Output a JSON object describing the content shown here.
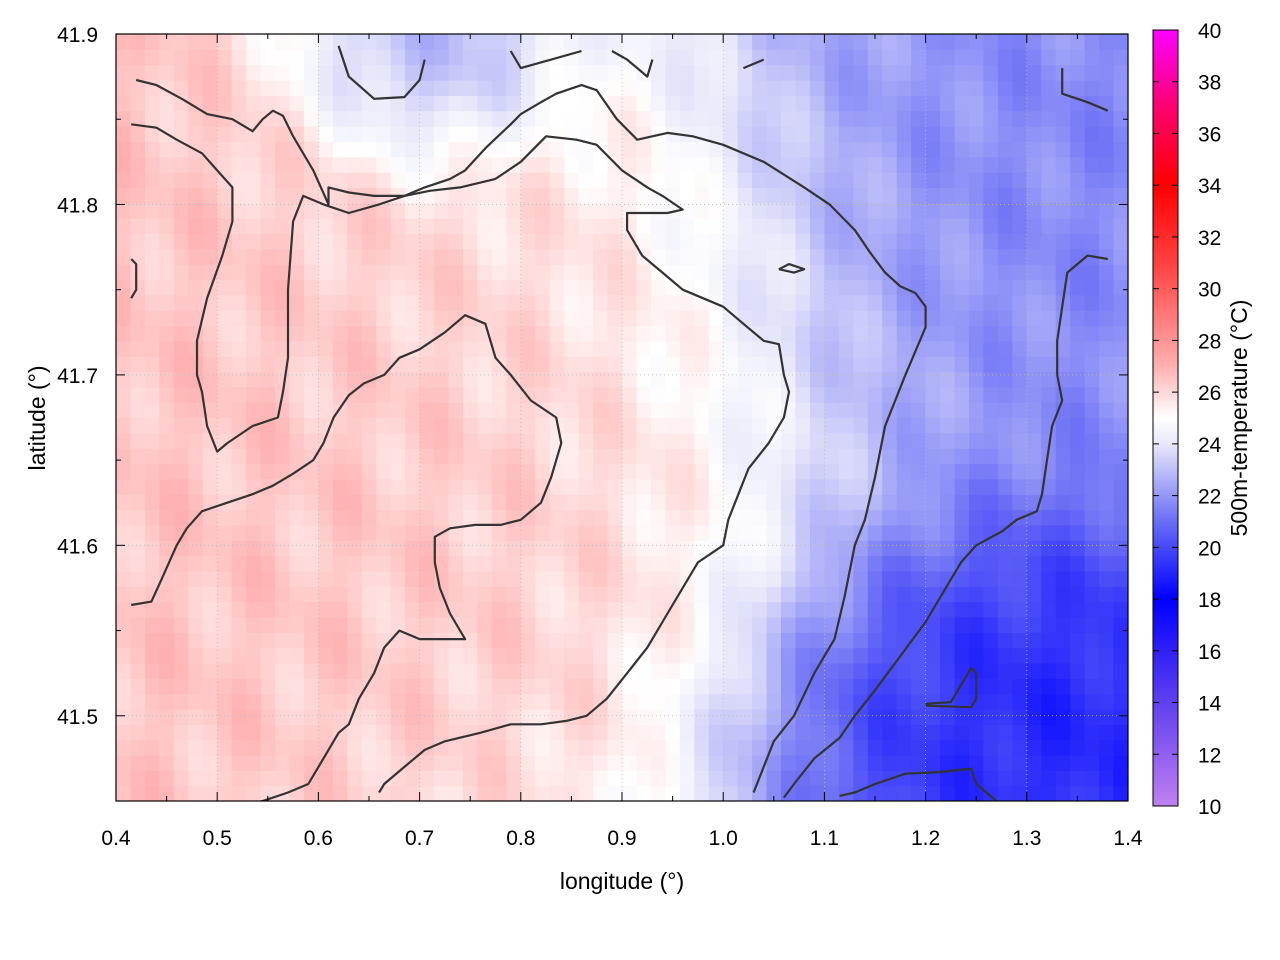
{
  "chart_data": {
    "type": "heatmap",
    "title": "",
    "xlabel": "longitude (°)",
    "ylabel": "latitude (°)",
    "colorbar_label": "500m-temperature (°C)",
    "xlim": [
      0.4,
      1.4
    ],
    "ylim": [
      41.45,
      41.9
    ],
    "x_ticks": [
      "0.4",
      "0.5",
      "0.6",
      "0.7",
      "0.8",
      "0.9",
      "1.0",
      "1.1",
      "1.2",
      "1.3",
      "1.4"
    ],
    "y_ticks": [
      "41.5",
      "41.6",
      "41.7",
      "41.8",
      "41.9"
    ],
    "colorbar_range": [
      10,
      40
    ],
    "colorbar_ticks": [
      "10",
      "12",
      "14",
      "16",
      "18",
      "20",
      "22",
      "24",
      "26",
      "28",
      "30",
      "32",
      "34",
      "36",
      "38",
      "40"
    ],
    "grid": true,
    "colormap_stops": [
      {
        "value": 10,
        "color": "#c080f0"
      },
      {
        "value": 14,
        "color": "#6040f0"
      },
      {
        "value": 18,
        "color": "#0000ff"
      },
      {
        "value": 21,
        "color": "#6a6ef5"
      },
      {
        "value": 24,
        "color": "#e8e8fa"
      },
      {
        "value": 25,
        "color": "#ffffff"
      },
      {
        "value": 27,
        "color": "#ffb0b0"
      },
      {
        "value": 31,
        "color": "#ff4040"
      },
      {
        "value": 34,
        "color": "#ff0000"
      },
      {
        "value": 37,
        "color": "#ff0070"
      },
      {
        "value": 40,
        "color": "#ff00ff"
      }
    ],
    "field_regions": [
      {
        "lon": 0.65,
        "lat": 41.65,
        "value": 26.5,
        "spread": 0.35
      },
      {
        "lon": 0.83,
        "lat": 41.78,
        "value": 26.0,
        "spread": 0.2
      },
      {
        "lon": 1.3,
        "lat": 41.5,
        "value": 18.5,
        "spread": 0.2
      },
      {
        "lon": 1.3,
        "lat": 41.8,
        "value": 21.5,
        "spread": 0.3
      },
      {
        "lon": 0.72,
        "lat": 41.88,
        "value": 21.5,
        "spread": 0.1
      }
    ],
    "contour_lines": [
      [
        [
          0.42,
          41.873
        ],
        [
          0.44,
          41.87
        ],
        [
          0.465,
          41.862
        ],
        [
          0.49,
          41.853
        ],
        [
          0.515,
          41.85
        ],
        [
          0.535,
          41.843
        ],
        [
          0.545,
          41.85
        ],
        [
          0.555,
          41.855
        ],
        [
          0.565,
          41.852
        ],
        [
          0.575,
          41.84
        ],
        [
          0.595,
          41.82
        ],
        [
          0.61,
          41.8
        ],
        [
          0.61,
          41.81
        ],
        [
          0.63,
          41.807
        ],
        [
          0.655,
          41.805
        ],
        [
          0.685,
          41.805
        ],
        [
          0.705,
          41.81
        ],
        [
          0.73,
          41.815
        ],
        [
          0.745,
          41.82
        ],
        [
          0.765,
          41.833
        ],
        [
          0.79,
          41.847
        ],
        [
          0.8,
          41.853
        ],
        [
          0.82,
          41.86
        ],
        [
          0.835,
          41.865
        ],
        [
          0.86,
          41.87
        ],
        [
          0.875,
          41.867
        ],
        [
          0.895,
          41.85
        ],
        [
          0.915,
          41.838
        ],
        [
          0.945,
          41.842
        ],
        [
          0.97,
          41.84
        ],
        [
          1.0,
          41.835
        ],
        [
          1.04,
          41.825
        ],
        [
          1.08,
          41.81
        ],
        [
          1.105,
          41.8
        ],
        [
          1.13,
          41.785
        ],
        [
          1.145,
          41.772
        ],
        [
          1.16,
          41.76
        ],
        [
          1.175,
          41.752
        ],
        [
          1.19,
          41.748
        ],
        [
          1.2,
          41.74
        ],
        [
          1.2,
          41.728
        ],
        [
          1.18,
          41.7
        ],
        [
          1.16,
          41.67
        ],
        [
          1.15,
          41.64
        ],
        [
          1.14,
          41.615
        ],
        [
          1.13,
          41.6
        ],
        [
          1.12,
          41.57
        ],
        [
          1.11,
          41.545
        ],
        [
          1.09,
          41.525
        ],
        [
          1.07,
          41.5
        ],
        [
          1.05,
          41.485
        ],
        [
          1.04,
          41.47
        ],
        [
          1.03,
          41.455
        ]
      ],
      [
        [
          0.415,
          41.847
        ],
        [
          0.44,
          41.845
        ],
        [
          0.46,
          41.838
        ],
        [
          0.485,
          41.83
        ],
        [
          0.5,
          41.82
        ],
        [
          0.515,
          41.81
        ],
        [
          0.515,
          41.79
        ],
        [
          0.505,
          41.77
        ],
        [
          0.49,
          41.745
        ],
        [
          0.48,
          41.72
        ],
        [
          0.48,
          41.7
        ],
        [
          0.485,
          41.69
        ],
        [
          0.49,
          41.67
        ],
        [
          0.5,
          41.655
        ],
        [
          0.51,
          41.66
        ],
        [
          0.535,
          41.67
        ],
        [
          0.56,
          41.675
        ],
        [
          0.565,
          41.69
        ],
        [
          0.57,
          41.71
        ],
        [
          0.57,
          41.75
        ],
        [
          0.575,
          41.79
        ],
        [
          0.585,
          41.805
        ],
        [
          0.605,
          41.8
        ],
        [
          0.63,
          41.795
        ],
        [
          0.66,
          41.8
        ],
        [
          0.685,
          41.805
        ],
        [
          0.71,
          41.808
        ],
        [
          0.74,
          41.81
        ],
        [
          0.775,
          41.815
        ],
        [
          0.8,
          41.825
        ],
        [
          0.825,
          41.84
        ],
        [
          0.855,
          41.838
        ],
        [
          0.875,
          41.835
        ],
        [
          0.9,
          41.82
        ],
        [
          0.925,
          41.81
        ],
        [
          0.94,
          41.805
        ],
        [
          0.96,
          41.797
        ],
        [
          0.945,
          41.795
        ],
        [
          0.92,
          41.795
        ],
        [
          0.905,
          41.795
        ],
        [
          0.905,
          41.785
        ],
        [
          0.92,
          41.77
        ],
        [
          0.94,
          41.76
        ],
        [
          0.96,
          41.75
        ],
        [
          0.98,
          41.745
        ],
        [
          1.0,
          41.74
        ],
        [
          1.02,
          41.73
        ],
        [
          1.04,
          41.72
        ],
        [
          1.055,
          41.718
        ],
        [
          1.06,
          41.7
        ],
        [
          1.065,
          41.69
        ],
        [
          1.06,
          41.675
        ],
        [
          1.045,
          41.66
        ],
        [
          1.025,
          41.645
        ],
        [
          1.015,
          41.63
        ],
        [
          1.005,
          41.615
        ],
        [
          1.0,
          41.6
        ],
        [
          0.975,
          41.59
        ],
        [
          0.96,
          41.575
        ],
        [
          0.945,
          41.56
        ],
        [
          0.925,
          41.54
        ],
        [
          0.905,
          41.525
        ],
        [
          0.885,
          41.51
        ],
        [
          0.865,
          41.5
        ],
        [
          0.845,
          41.497
        ],
        [
          0.82,
          41.495
        ],
        [
          0.79,
          41.495
        ],
        [
          0.76,
          41.49
        ],
        [
          0.725,
          41.485
        ],
        [
          0.705,
          41.48
        ],
        [
          0.685,
          41.47
        ],
        [
          0.665,
          41.46
        ],
        [
          0.66,
          41.455
        ]
      ],
      [
        [
          0.415,
          41.565
        ],
        [
          0.435,
          41.567
        ],
        [
          0.445,
          41.58
        ],
        [
          0.46,
          41.6
        ],
        [
          0.47,
          41.61
        ],
        [
          0.485,
          41.62
        ],
        [
          0.51,
          41.625
        ],
        [
          0.535,
          41.63
        ],
        [
          0.555,
          41.635
        ],
        [
          0.575,
          41.642
        ],
        [
          0.595,
          41.65
        ],
        [
          0.605,
          41.66
        ],
        [
          0.615,
          41.675
        ],
        [
          0.63,
          41.688
        ],
        [
          0.645,
          41.695
        ],
        [
          0.665,
          41.7
        ],
        [
          0.68,
          41.71
        ],
        [
          0.7,
          41.715
        ],
        [
          0.725,
          41.725
        ],
        [
          0.745,
          41.735
        ],
        [
          0.765,
          41.73
        ],
        [
          0.775,
          41.71
        ],
        [
          0.79,
          41.7
        ],
        [
          0.81,
          41.685
        ],
        [
          0.835,
          41.675
        ],
        [
          0.84,
          41.66
        ],
        [
          0.83,
          41.64
        ],
        [
          0.82,
          41.625
        ],
        [
          0.8,
          41.615
        ],
        [
          0.78,
          41.612
        ],
        [
          0.755,
          41.612
        ],
        [
          0.73,
          41.61
        ],
        [
          0.715,
          41.605
        ],
        [
          0.715,
          41.59
        ],
        [
          0.72,
          41.575
        ],
        [
          0.73,
          41.56
        ],
        [
          0.745,
          41.545
        ],
        [
          0.725,
          41.545
        ],
        [
          0.7,
          41.545
        ],
        [
          0.68,
          41.55
        ],
        [
          0.665,
          41.54
        ],
        [
          0.655,
          41.525
        ],
        [
          0.64,
          41.51
        ],
        [
          0.63,
          41.495
        ],
        [
          0.62,
          41.49
        ],
        [
          0.605,
          41.475
        ],
        [
          0.59,
          41.46
        ],
        [
          0.57,
          41.455
        ],
        [
          0.545,
          41.45
        ],
        [
          0.53,
          41.448
        ]
      ],
      [
        [
          0.415,
          41.768
        ],
        [
          0.42,
          41.765
        ],
        [
          0.42,
          41.75
        ],
        [
          0.415,
          41.745
        ]
      ],
      [
        [
          0.62,
          41.893
        ],
        [
          0.63,
          41.875
        ],
        [
          0.655,
          41.862
        ],
        [
          0.685,
          41.863
        ],
        [
          0.7,
          41.873
        ],
        [
          0.705,
          41.885
        ]
      ],
      [
        [
          0.79,
          41.89
        ],
        [
          0.8,
          41.88
        ],
        [
          0.83,
          41.885
        ],
        [
          0.86,
          41.89
        ]
      ],
      [
        [
          0.89,
          41.89
        ],
        [
          0.905,
          41.885
        ],
        [
          0.925,
          41.875
        ],
        [
          0.93,
          41.885
        ]
      ],
      [
        [
          1.02,
          41.88
        ],
        [
          1.04,
          41.885
        ]
      ],
      [
        [
          1.335,
          41.88
        ],
        [
          1.335,
          41.865
        ],
        [
          1.36,
          41.86
        ],
        [
          1.38,
          41.855
        ]
      ],
      [
        [
          1.055,
          41.762
        ],
        [
          1.065,
          41.765
        ],
        [
          1.08,
          41.762
        ],
        [
          1.07,
          41.76
        ],
        [
          1.055,
          41.762
        ]
      ],
      [
        [
          1.2,
          41.507
        ],
        [
          1.225,
          41.508
        ],
        [
          1.245,
          41.528
        ],
        [
          1.25,
          41.525
        ],
        [
          1.25,
          41.51
        ],
        [
          1.245,
          41.505
        ],
        [
          1.2,
          41.506
        ]
      ],
      [
        [
          1.115,
          41.453
        ],
        [
          1.13,
          41.455
        ],
        [
          1.15,
          41.46
        ],
        [
          1.18,
          41.466
        ],
        [
          1.215,
          41.467
        ],
        [
          1.245,
          41.469
        ],
        [
          1.25,
          41.46
        ],
        [
          1.27,
          41.45
        ]
      ],
      [
        [
          1.38,
          41.768
        ],
        [
          1.36,
          41.77
        ],
        [
          1.34,
          41.76
        ],
        [
          1.335,
          41.74
        ],
        [
          1.33,
          41.72
        ],
        [
          1.33,
          41.7
        ],
        [
          1.335,
          41.685
        ],
        [
          1.325,
          41.67
        ],
        [
          1.32,
          41.65
        ],
        [
          1.315,
          41.63
        ],
        [
          1.31,
          41.62
        ],
        [
          1.29,
          41.615
        ],
        [
          1.275,
          41.608
        ],
        [
          1.25,
          41.6
        ],
        [
          1.235,
          41.59
        ],
        [
          1.22,
          41.575
        ],
        [
          1.2,
          41.555
        ],
        [
          1.175,
          41.535
        ],
        [
          1.15,
          41.515
        ],
        [
          1.13,
          41.5
        ],
        [
          1.115,
          41.487
        ],
        [
          1.09,
          41.475
        ],
        [
          1.07,
          41.46
        ],
        [
          1.06,
          41.452
        ]
      ]
    ]
  }
}
